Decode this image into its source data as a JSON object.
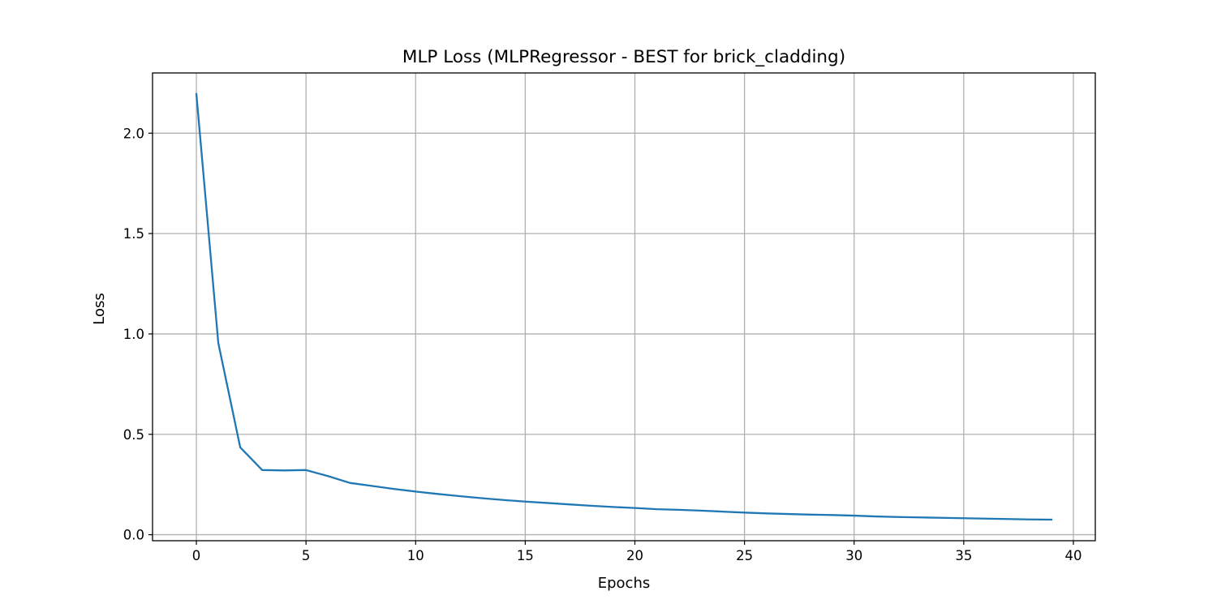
{
  "chart_data": {
    "type": "line",
    "title": "MLP Loss (MLPRegressor - BEST for brick_cladding)",
    "xlabel": "Epochs",
    "ylabel": "Loss",
    "xlim": [
      -2,
      41
    ],
    "ylim": [
      -0.03,
      2.3
    ],
    "xticks": [
      0,
      5,
      10,
      15,
      20,
      25,
      30,
      35,
      40
    ],
    "xtick_labels": [
      "0",
      "5",
      "10",
      "15",
      "20",
      "25",
      "30",
      "35",
      "40"
    ],
    "yticks": [
      0.0,
      0.5,
      1.0,
      1.5,
      2.0
    ],
    "ytick_labels": [
      "0.0",
      "0.5",
      "1.0",
      "1.5",
      "2.0"
    ],
    "grid": true,
    "legend": "none",
    "series": [
      {
        "color": "#1f77b4",
        "x": [
          0,
          1,
          2,
          3,
          4,
          5,
          6,
          7,
          8,
          9,
          10,
          11,
          12,
          13,
          14,
          15,
          16,
          17,
          18,
          19,
          20,
          21,
          22,
          23,
          24,
          25,
          26,
          27,
          28,
          29,
          30,
          31,
          32,
          33,
          34,
          35,
          36,
          37,
          38,
          39
        ],
        "y": [
          2.195,
          0.955,
          0.435,
          0.322,
          0.32,
          0.322,
          0.292,
          0.258,
          0.243,
          0.228,
          0.215,
          0.203,
          0.192,
          0.182,
          0.173,
          0.165,
          0.158,
          0.151,
          0.144,
          0.138,
          0.133,
          0.127,
          0.124,
          0.12,
          0.115,
          0.11,
          0.106,
          0.103,
          0.1,
          0.098,
          0.095,
          0.091,
          0.088,
          0.086,
          0.084,
          0.082,
          0.08,
          0.078,
          0.076,
          0.075
        ]
      }
    ]
  }
}
